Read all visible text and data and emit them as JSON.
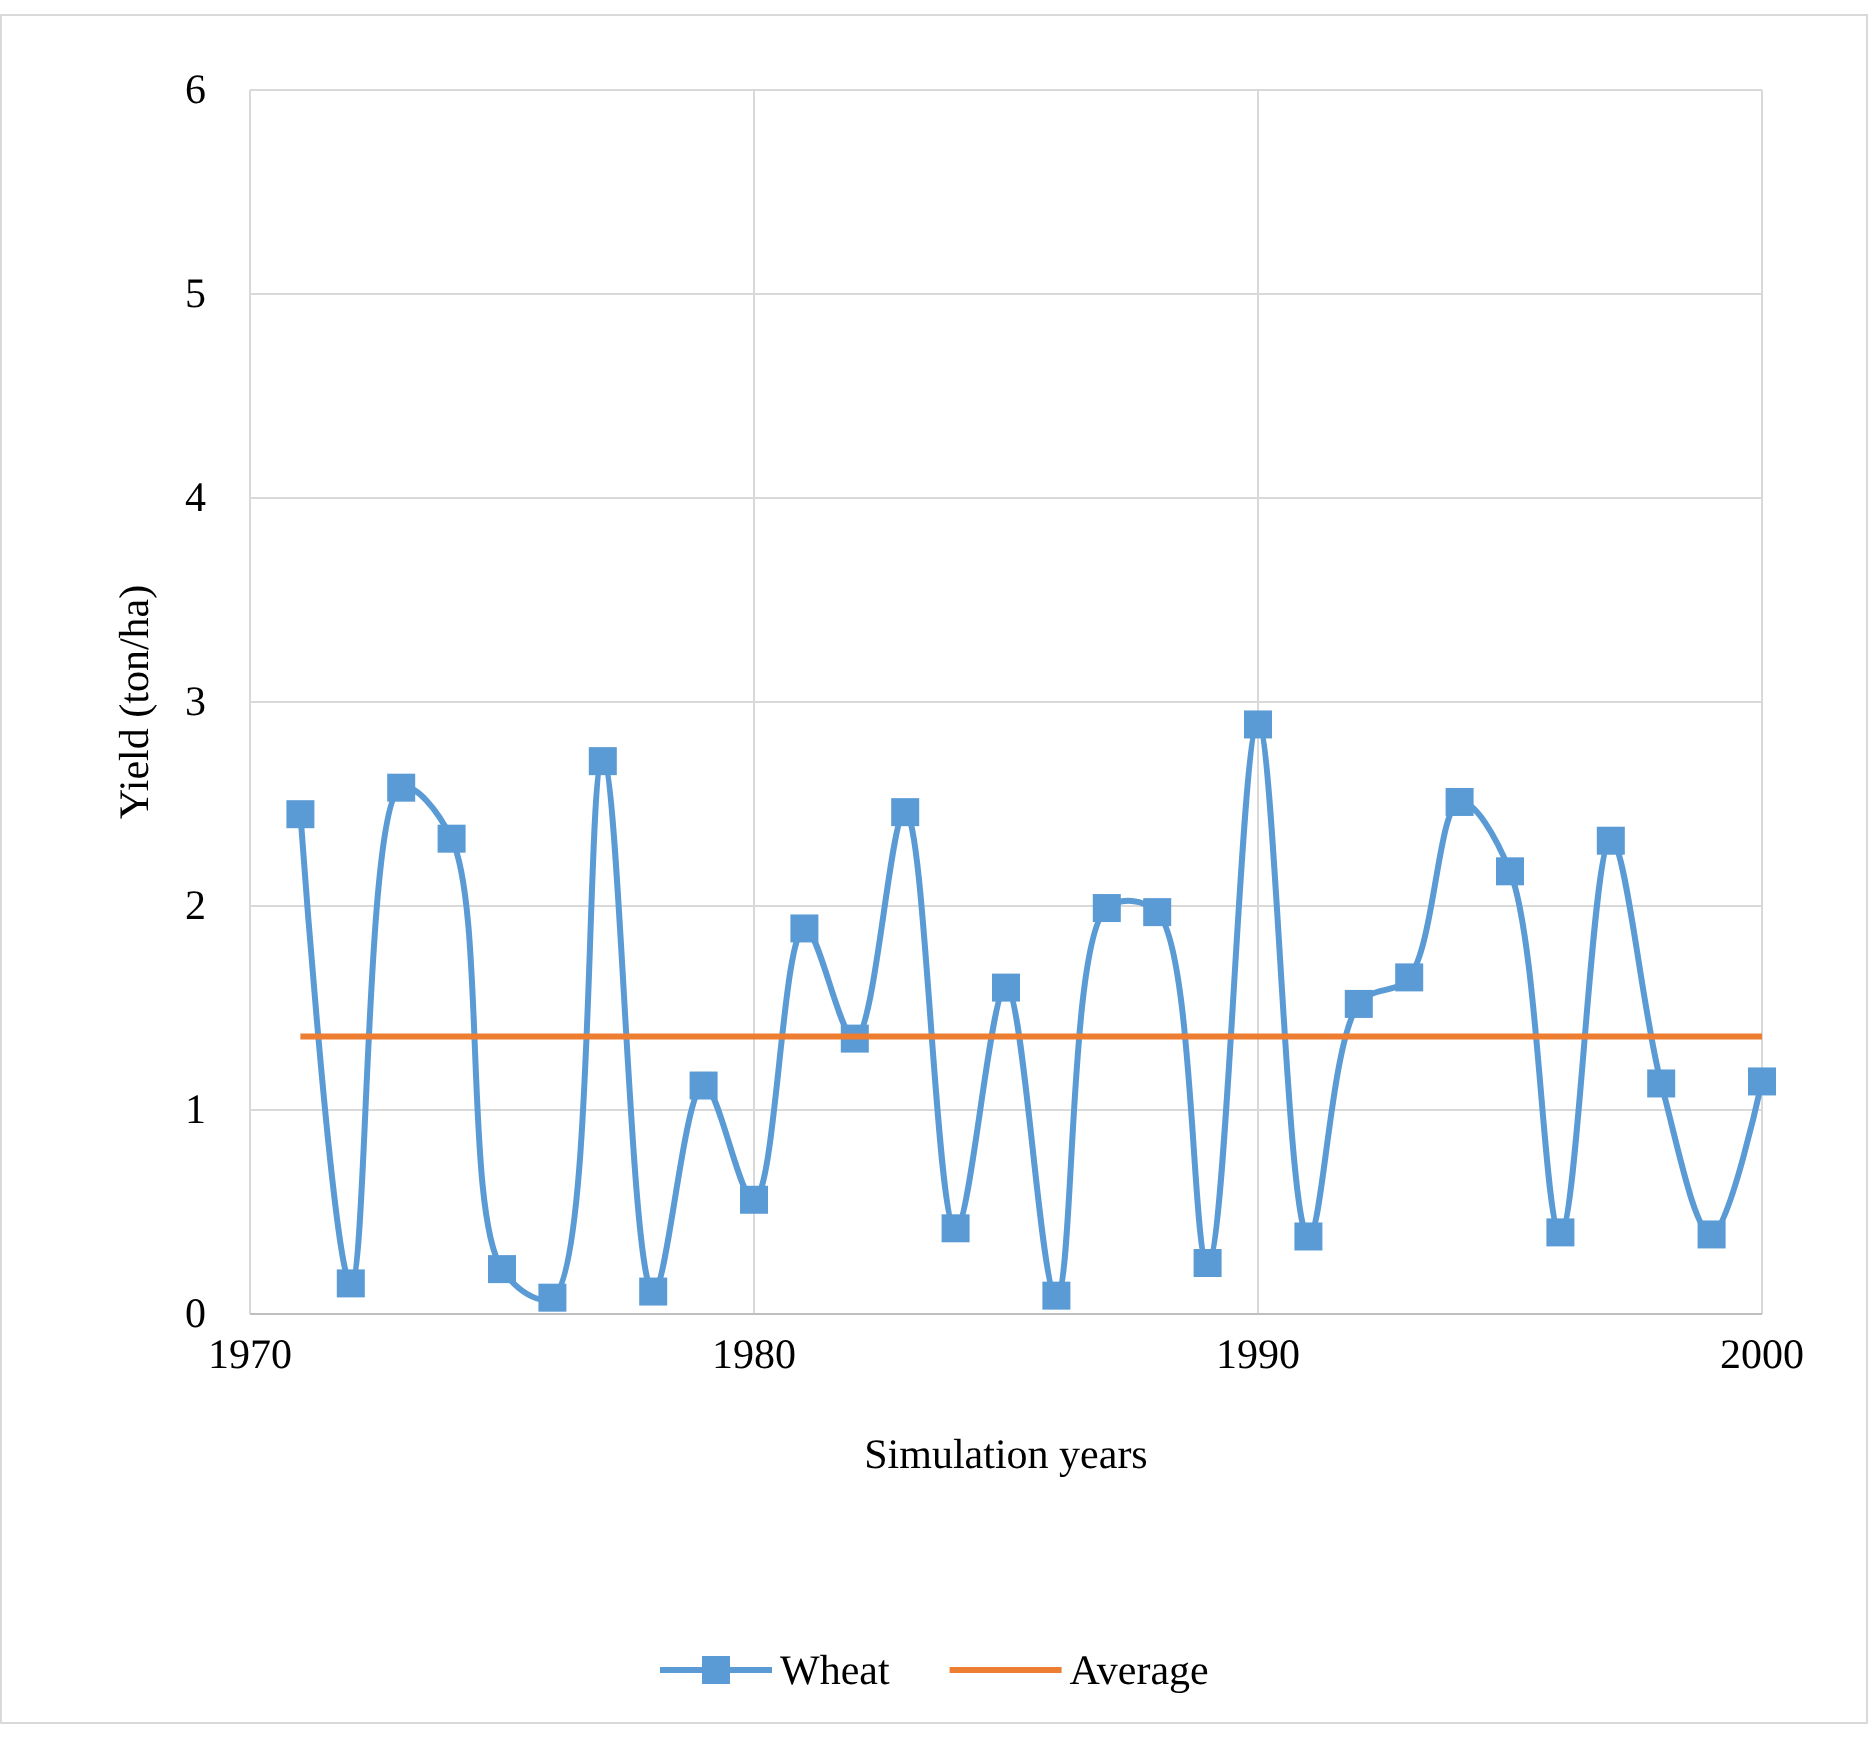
{
  "chart_data": {
    "type": "line",
    "xlabel": "Simulation years",
    "ylabel": "Yield (ton/ha)",
    "xlim": [
      1970,
      2000
    ],
    "xticks": [
      1970,
      1980,
      1990,
      2000
    ],
    "ylim": [
      0,
      6
    ],
    "yticks": [
      0,
      1,
      2,
      3,
      4,
      5,
      6
    ],
    "grid": true,
    "legend": "bottom",
    "line_style": "solid",
    "series": [
      {
        "name": "Wheat",
        "color": "#5b9bd5",
        "marker": "square",
        "x": [
          1971,
          1972,
          1973,
          1974,
          1975,
          1976,
          1977,
          1978,
          1979,
          1980,
          1981,
          1982,
          1983,
          1984,
          1985,
          1986,
          1987,
          1988,
          1989,
          1990,
          1991,
          1992,
          1993,
          1994,
          1995,
          1996,
          1997,
          1998,
          1999,
          2000
        ],
        "values": [
          2.45,
          0.15,
          2.58,
          2.33,
          0.22,
          0.08,
          2.71,
          0.11,
          1.12,
          0.56,
          1.89,
          1.35,
          2.46,
          0.42,
          1.6,
          0.09,
          1.99,
          1.97,
          0.25,
          2.89,
          0.38,
          1.52,
          1.65,
          2.51,
          2.17,
          0.4,
          2.32,
          1.13,
          0.39,
          1.14
        ]
      },
      {
        "name": "Average",
        "color": "#ed7d31",
        "marker": "none",
        "x": [
          1971,
          2000
        ],
        "values": [
          1.36,
          1.36
        ]
      }
    ]
  }
}
